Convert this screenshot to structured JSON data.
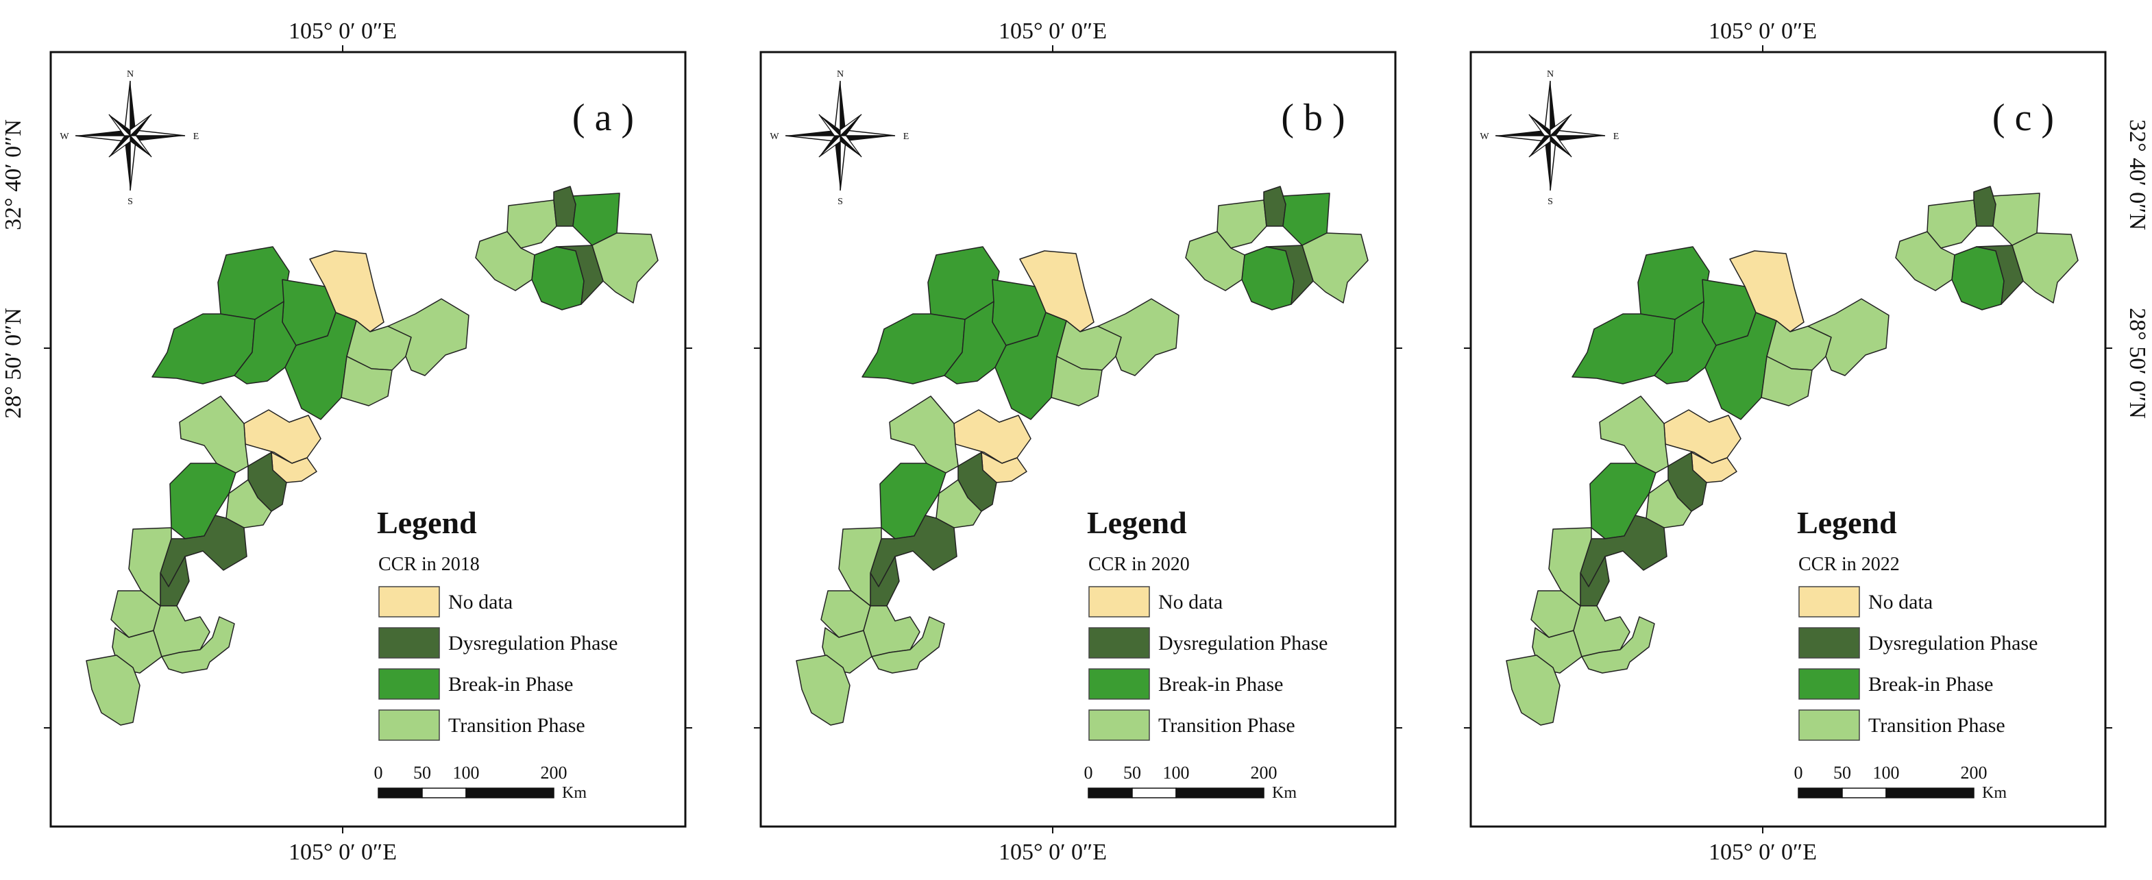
{
  "colors": {
    "no_data": "#f9e1a0",
    "dysregulation": "#456a35",
    "breakin": "#3b9d32",
    "transition": "#a6d484",
    "border": "#222222",
    "frame": "#111111"
  },
  "axis_labels": {
    "lon": "105° 0′ 0″E",
    "lat_north": "32° 40′ 0″N",
    "lat_south": "28° 50′ 0″N"
  },
  "compass": {
    "n": "N",
    "s": "S",
    "e": "E",
    "w": "W"
  },
  "legend": {
    "title": "Legend",
    "items": [
      {
        "key": "no_data",
        "label": "No data"
      },
      {
        "key": "dysregulation",
        "label": "Dysregulation Phase"
      },
      {
        "key": "breakin",
        "label": "Break-in Phase"
      },
      {
        "key": "transition",
        "label": "Transition Phase"
      }
    ]
  },
  "scale_bar": {
    "ticks": [
      "0",
      "50",
      "100",
      "200"
    ],
    "unit": "Km"
  },
  "panels": [
    {
      "tag": "( a )",
      "subtitle": "CCR in 2018",
      "regions": {
        "r01": "transition",
        "r02": "dysregulation",
        "r03": "breakin",
        "r04": "transition",
        "r05": "breakin",
        "r06": "dysregulation",
        "r07": "transition",
        "r08": "no_data",
        "r09": "breakin",
        "r10": "breakin",
        "r11": "breakin",
        "r12": "breakin",
        "r13": "breakin",
        "r14": "transition",
        "r15": "transition",
        "r16": "transition",
        "r17": "no_data",
        "r18": "no_data",
        "r19": "dysregulation",
        "r20": "transition",
        "r21": "breakin",
        "r22": "transition",
        "r23": "dysregulation",
        "r24": "dysregulation",
        "r25": "transition",
        "r26": "transition",
        "r27": "transition",
        "r28": "transition",
        "r29": "transition",
        "r30": "transition"
      }
    },
    {
      "tag": "( b )",
      "subtitle": "CCR in 2020",
      "regions": {
        "r01": "transition",
        "r02": "dysregulation",
        "r03": "breakin",
        "r04": "transition",
        "r05": "breakin",
        "r06": "dysregulation",
        "r07": "transition",
        "r08": "no_data",
        "r09": "breakin",
        "r10": "breakin",
        "r11": "breakin",
        "r12": "breakin",
        "r13": "breakin",
        "r14": "transition",
        "r15": "transition",
        "r16": "transition",
        "r17": "no_data",
        "r18": "no_data",
        "r19": "dysregulation",
        "r20": "transition",
        "r21": "breakin",
        "r22": "transition",
        "r23": "dysregulation",
        "r24": "dysregulation",
        "r25": "transition",
        "r26": "transition",
        "r27": "transition",
        "r28": "transition",
        "r29": "transition",
        "r30": "transition"
      }
    },
    {
      "tag": "( c )",
      "subtitle": "CCR in 2022",
      "regions": {
        "r01": "transition",
        "r02": "dysregulation",
        "r03": "transition",
        "r04": "transition",
        "r05": "breakin",
        "r06": "dysregulation",
        "r07": "transition",
        "r08": "no_data",
        "r09": "breakin",
        "r10": "breakin",
        "r11": "breakin",
        "r12": "breakin",
        "r13": "breakin",
        "r14": "transition",
        "r15": "transition",
        "r16": "transition",
        "r17": "no_data",
        "r18": "no_data",
        "r19": "dysregulation",
        "r20": "transition",
        "r21": "breakin",
        "r22": "transition",
        "r23": "dysregulation",
        "r24": "dysregulation",
        "r25": "transition",
        "r26": "transition",
        "r27": "transition",
        "r28": "transition",
        "r29": "transition",
        "r30": "transition"
      }
    }
  ]
}
